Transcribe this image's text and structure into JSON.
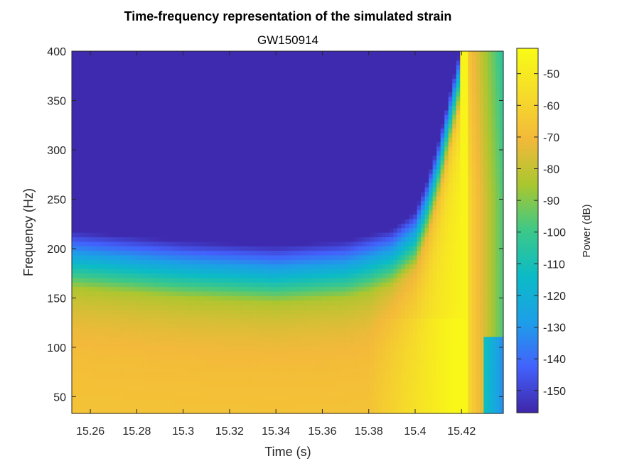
{
  "chart_data": {
    "type": "heatmap",
    "title": "Time-frequency representation of the simulated strain",
    "subtitle": "GW150914",
    "xlabel": "Time (s)",
    "ylabel": "Frequency (Hz)",
    "xlim": [
      15.252,
      15.438
    ],
    "ylim": [
      33,
      400
    ],
    "xticks": [
      15.26,
      15.28,
      15.3,
      15.32,
      15.34,
      15.36,
      15.38,
      15.4,
      15.42
    ],
    "xtick_labels": [
      "15.26",
      "15.28",
      "15.3",
      "15.32",
      "15.34",
      "15.36",
      "15.38",
      "15.4",
      "15.42"
    ],
    "yticks": [
      50,
      100,
      150,
      200,
      250,
      300,
      350,
      400
    ],
    "ytick_labels": [
      "50",
      "100",
      "150",
      "200",
      "250",
      "300",
      "350",
      "400"
    ],
    "colorbar": {
      "label": "Power (dB)",
      "clim": [
        -157,
        -42
      ],
      "ticks": [
        -50,
        -60,
        -70,
        -80,
        -90,
        -100,
        -110,
        -120,
        -130,
        -140,
        -150
      ],
      "tick_labels": [
        "-50",
        "-60",
        "-70",
        "-80",
        "-90",
        "-100",
        "-110",
        "-120",
        "-130",
        "-140",
        "-150"
      ],
      "colormap": "parula"
    },
    "chirp_track": {
      "description": "frequency edge where power drops to noise floor",
      "time": [
        15.252,
        15.3,
        15.34,
        15.37,
        15.39,
        15.4,
        15.405,
        15.41,
        15.415,
        15.42
      ],
      "frequency": [
        210,
        200,
        195,
        200,
        212,
        230,
        260,
        300,
        350,
        400
      ]
    },
    "merger_time": 15.42,
    "grid": false
  }
}
